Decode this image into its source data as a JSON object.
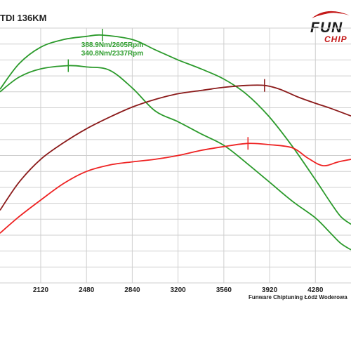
{
  "title": "TDI 136KM",
  "logo": {
    "word1": "FUN",
    "word2": "CHIP"
  },
  "footer": "Funware Chiptuning Łódź Woderowa",
  "colors": {
    "tuned_torque": "#2b9a2b",
    "stock_torque": "#2b9a2b",
    "tuned_power": "#8b1a1a",
    "stock_power": "#ee2222",
    "grid": "#cfcfcf"
  },
  "chart_data": {
    "type": "line",
    "xlabel": "",
    "ylabel": "",
    "x_ticks": [
      "2120",
      "2480",
      "2840",
      "3200",
      "3560",
      "3920",
      "4280"
    ],
    "xlim": [
      1800,
      4560
    ],
    "ylim": [
      0,
      400
    ],
    "grid": true,
    "annotations": [
      {
        "text": "388.9Nm/2605Rpm",
        "x": 2605,
        "y": 388.9,
        "series": "tuned_torque"
      },
      {
        "text": "340.8Nm/2337Rpm",
        "x": 2337,
        "y": 340.8,
        "series": "stock_torque"
      }
    ],
    "markers": [
      {
        "series": "tuned_torque",
        "x": 2605,
        "y": 389
      },
      {
        "series": "stock_torque",
        "x": 2337,
        "y": 341
      },
      {
        "series": "tuned_power",
        "x": 3880,
        "y": 310
      },
      {
        "series": "stock_power",
        "x": 3750,
        "y": 219
      }
    ],
    "series": [
      {
        "key": "tuned_torque",
        "x": [
          1800,
          1950,
          2120,
          2300,
          2480,
          2605,
          2840,
          3020,
          3200,
          3380,
          3560,
          3740,
          3920,
          4100,
          4280,
          4400,
          4480,
          4560
        ],
        "y": [
          304,
          344,
          370,
          382,
          387,
          389,
          382,
          366,
          350,
          336,
          320,
          296,
          260,
          214,
          162,
          126,
          104,
          92
        ]
      },
      {
        "key": "stock_torque",
        "x": [
          1800,
          1950,
          2120,
          2337,
          2480,
          2660,
          2840,
          3020,
          3200,
          3380,
          3560,
          3740,
          3920,
          4100,
          4280,
          4400,
          4480,
          4560
        ],
        "y": [
          300,
          323,
          336,
          341,
          339,
          334,
          306,
          270,
          253,
          234,
          216,
          188,
          158,
          128,
          102,
          78,
          62,
          52
        ]
      },
      {
        "key": "tuned_power",
        "x": [
          1800,
          1950,
          2120,
          2300,
          2480,
          2660,
          2840,
          3020,
          3200,
          3380,
          3560,
          3740,
          3880,
          4000,
          4140,
          4280,
          4400,
          4560
        ],
        "y": [
          114,
          158,
          194,
          220,
          242,
          260,
          276,
          288,
          297,
          302,
          307,
          310,
          310,
          304,
          292,
          282,
          274,
          262
        ]
      },
      {
        "key": "stock_power",
        "x": [
          1800,
          1950,
          2120,
          2300,
          2480,
          2660,
          2840,
          3020,
          3200,
          3380,
          3560,
          3750,
          3920,
          4100,
          4220,
          4340,
          4460,
          4560
        ],
        "y": [
          78,
          104,
          130,
          156,
          175,
          185,
          190,
          194,
          200,
          208,
          214,
          219,
          217,
          212,
          196,
          184,
          190,
          194
        ]
      }
    ]
  }
}
